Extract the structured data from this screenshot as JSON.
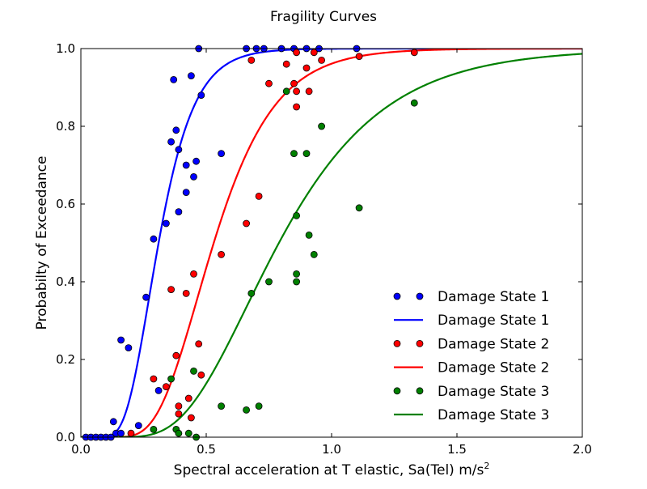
{
  "chart_data": {
    "type": "scatter",
    "title": "Fragility Curves",
    "xlabel_main": "Spectral acceleration at T elastic, Sa(Tel) m/s",
    "xlabel_sup": "2",
    "ylabel": "Probabilty of Exceedance",
    "xlim": [
      0.0,
      2.0
    ],
    "ylim": [
      0.0,
      1.0
    ],
    "xticks": [
      "0.0",
      "0.5",
      "1.0",
      "1.5",
      "2.0"
    ],
    "yticks": [
      "0.0",
      "0.2",
      "0.4",
      "0.6",
      "0.8",
      "1.0"
    ],
    "grid": false,
    "legend_position": "lower-right",
    "series": [
      {
        "name": "Damage State 1",
        "kind": "points",
        "color": "#0000ff",
        "points": [
          [
            0.02,
            0.0
          ],
          [
            0.04,
            0.0
          ],
          [
            0.06,
            0.0
          ],
          [
            0.08,
            0.0
          ],
          [
            0.1,
            0.0
          ],
          [
            0.12,
            0.0
          ],
          [
            0.13,
            0.04
          ],
          [
            0.14,
            0.01
          ],
          [
            0.16,
            0.01
          ],
          [
            0.16,
            0.25
          ],
          [
            0.19,
            0.23
          ],
          [
            0.23,
            0.03
          ],
          [
            0.26,
            0.36
          ],
          [
            0.29,
            0.51
          ],
          [
            0.31,
            0.12
          ],
          [
            0.34,
            0.55
          ],
          [
            0.36,
            0.76
          ],
          [
            0.37,
            0.92
          ],
          [
            0.38,
            0.79
          ],
          [
            0.39,
            0.74
          ],
          [
            0.39,
            0.58
          ],
          [
            0.42,
            0.63
          ],
          [
            0.42,
            0.7
          ],
          [
            0.44,
            0.93
          ],
          [
            0.45,
            0.67
          ],
          [
            0.46,
            0.71
          ],
          [
            0.47,
            1.0
          ],
          [
            0.48,
            0.88
          ],
          [
            0.56,
            0.73
          ],
          [
            0.66,
            1.0
          ],
          [
            0.7,
            1.0
          ],
          [
            0.73,
            1.0
          ],
          [
            0.8,
            1.0
          ],
          [
            0.85,
            1.0
          ],
          [
            0.9,
            1.0
          ],
          [
            0.95,
            1.0
          ],
          [
            1.1,
            1.0
          ]
        ]
      },
      {
        "name": "Damage State 1",
        "kind": "curve",
        "color": "#0000ff",
        "median": 0.31,
        "beta": 0.36
      },
      {
        "name": "Damage State 2",
        "kind": "points",
        "color": "#ff0000",
        "points": [
          [
            0.2,
            0.01
          ],
          [
            0.29,
            0.15
          ],
          [
            0.34,
            0.13
          ],
          [
            0.36,
            0.38
          ],
          [
            0.38,
            0.21
          ],
          [
            0.39,
            0.08
          ],
          [
            0.39,
            0.06
          ],
          [
            0.42,
            0.37
          ],
          [
            0.43,
            0.1
          ],
          [
            0.44,
            0.05
          ],
          [
            0.45,
            0.42
          ],
          [
            0.47,
            0.24
          ],
          [
            0.48,
            0.16
          ],
          [
            0.56,
            0.47
          ],
          [
            0.66,
            0.55
          ],
          [
            0.68,
            0.97
          ],
          [
            0.71,
            0.62
          ],
          [
            0.75,
            0.91
          ],
          [
            0.82,
            0.96
          ],
          [
            0.85,
            0.91
          ],
          [
            0.86,
            0.99
          ],
          [
            0.86,
            0.85
          ],
          [
            0.86,
            0.89
          ],
          [
            0.9,
            0.95
          ],
          [
            0.91,
            0.89
          ],
          [
            0.93,
            0.99
          ],
          [
            0.96,
            0.97
          ],
          [
            1.11,
            0.98
          ],
          [
            1.33,
            0.99
          ]
        ]
      },
      {
        "name": "Damage State 2",
        "kind": "curve",
        "color": "#ff0000",
        "median": 0.53,
        "beta": 0.36
      },
      {
        "name": "Damage State 3",
        "kind": "points",
        "color": "#008000",
        "points": [
          [
            0.29,
            0.02
          ],
          [
            0.36,
            0.15
          ],
          [
            0.38,
            0.02
          ],
          [
            0.39,
            0.01
          ],
          [
            0.43,
            0.01
          ],
          [
            0.45,
            0.17
          ],
          [
            0.46,
            0.0
          ],
          [
            0.56,
            0.08
          ],
          [
            0.66,
            0.07
          ],
          [
            0.68,
            0.37
          ],
          [
            0.71,
            0.08
          ],
          [
            0.75,
            0.4
          ],
          [
            0.82,
            0.89
          ],
          [
            0.85,
            0.73
          ],
          [
            0.86,
            0.57
          ],
          [
            0.86,
            0.42
          ],
          [
            0.86,
            0.4
          ],
          [
            0.9,
            0.73
          ],
          [
            0.91,
            0.52
          ],
          [
            0.93,
            0.47
          ],
          [
            0.96,
            0.8
          ],
          [
            1.11,
            0.59
          ],
          [
            1.33,
            0.86
          ]
        ]
      },
      {
        "name": "Damage State 3",
        "kind": "curve",
        "color": "#008000",
        "median": 0.79,
        "beta": 0.42
      }
    ]
  }
}
